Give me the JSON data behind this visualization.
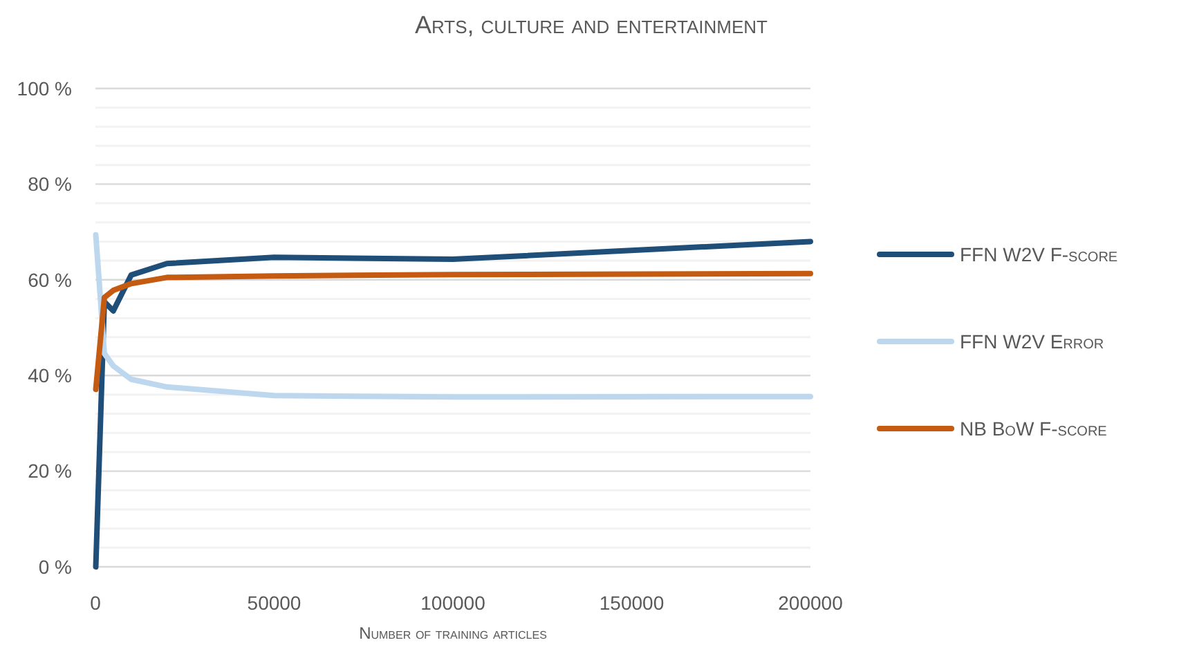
{
  "chart_data": {
    "type": "line",
    "title": "Arts, culture and entertainment",
    "xlabel": "Number of training articles",
    "x": [
      100,
      2500,
      5000,
      10000,
      20000,
      50000,
      100000,
      200000
    ],
    "series": [
      {
        "name": "FFN W2V F-score",
        "color": "#1f4e79",
        "values": [
          0,
          55.4,
          53.5,
          61,
          63.4,
          64.7,
          64.3,
          68
        ]
      },
      {
        "name": "FFN W2V Error",
        "color": "#bdd7ee",
        "values": [
          69.4,
          44.6,
          42,
          39.2,
          37.6,
          35.8,
          35.5,
          35.6
        ]
      },
      {
        "name": "NB BoW F-score",
        "color": "#c55a11",
        "values": [
          37.1,
          56.3,
          57.8,
          59.2,
          60.5,
          60.8,
          61.1,
          61.3
        ]
      }
    ],
    "xlim": [
      0,
      200000
    ],
    "xticks": [
      0,
      50000,
      100000,
      150000,
      200000
    ],
    "ylim": [
      0,
      100
    ],
    "yticks": [
      {
        "value": 0,
        "label": "0 %"
      },
      {
        "value": 4,
        "label": null
      },
      {
        "value": 8,
        "label": null
      },
      {
        "value": 12,
        "label": null
      },
      {
        "value": 16,
        "label": null
      },
      {
        "value": 20,
        "label": "20 %"
      },
      {
        "value": 24,
        "label": null
      },
      {
        "value": 28,
        "label": null
      },
      {
        "value": 32,
        "label": null
      },
      {
        "value": 36,
        "label": null
      },
      {
        "value": 40,
        "label": "40 %"
      },
      {
        "value": 44,
        "label": null
      },
      {
        "value": 48,
        "label": null
      },
      {
        "value": 52,
        "label": null
      },
      {
        "value": 56,
        "label": null
      },
      {
        "value": 60,
        "label": "60 %"
      },
      {
        "value": 64,
        "label": null
      },
      {
        "value": 68,
        "label": null
      },
      {
        "value": 72,
        "label": null
      },
      {
        "value": 76,
        "label": null
      },
      {
        "value": 80,
        "label": "80 %"
      },
      {
        "value": 84,
        "label": null
      },
      {
        "value": 88,
        "label": null
      },
      {
        "value": 92,
        "label": null
      },
      {
        "value": 96,
        "label": null
      },
      {
        "value": 100,
        "label": "100 %"
      }
    ],
    "grid": "y",
    "legend": "right",
    "marker": "none",
    "line_style": "solid"
  }
}
